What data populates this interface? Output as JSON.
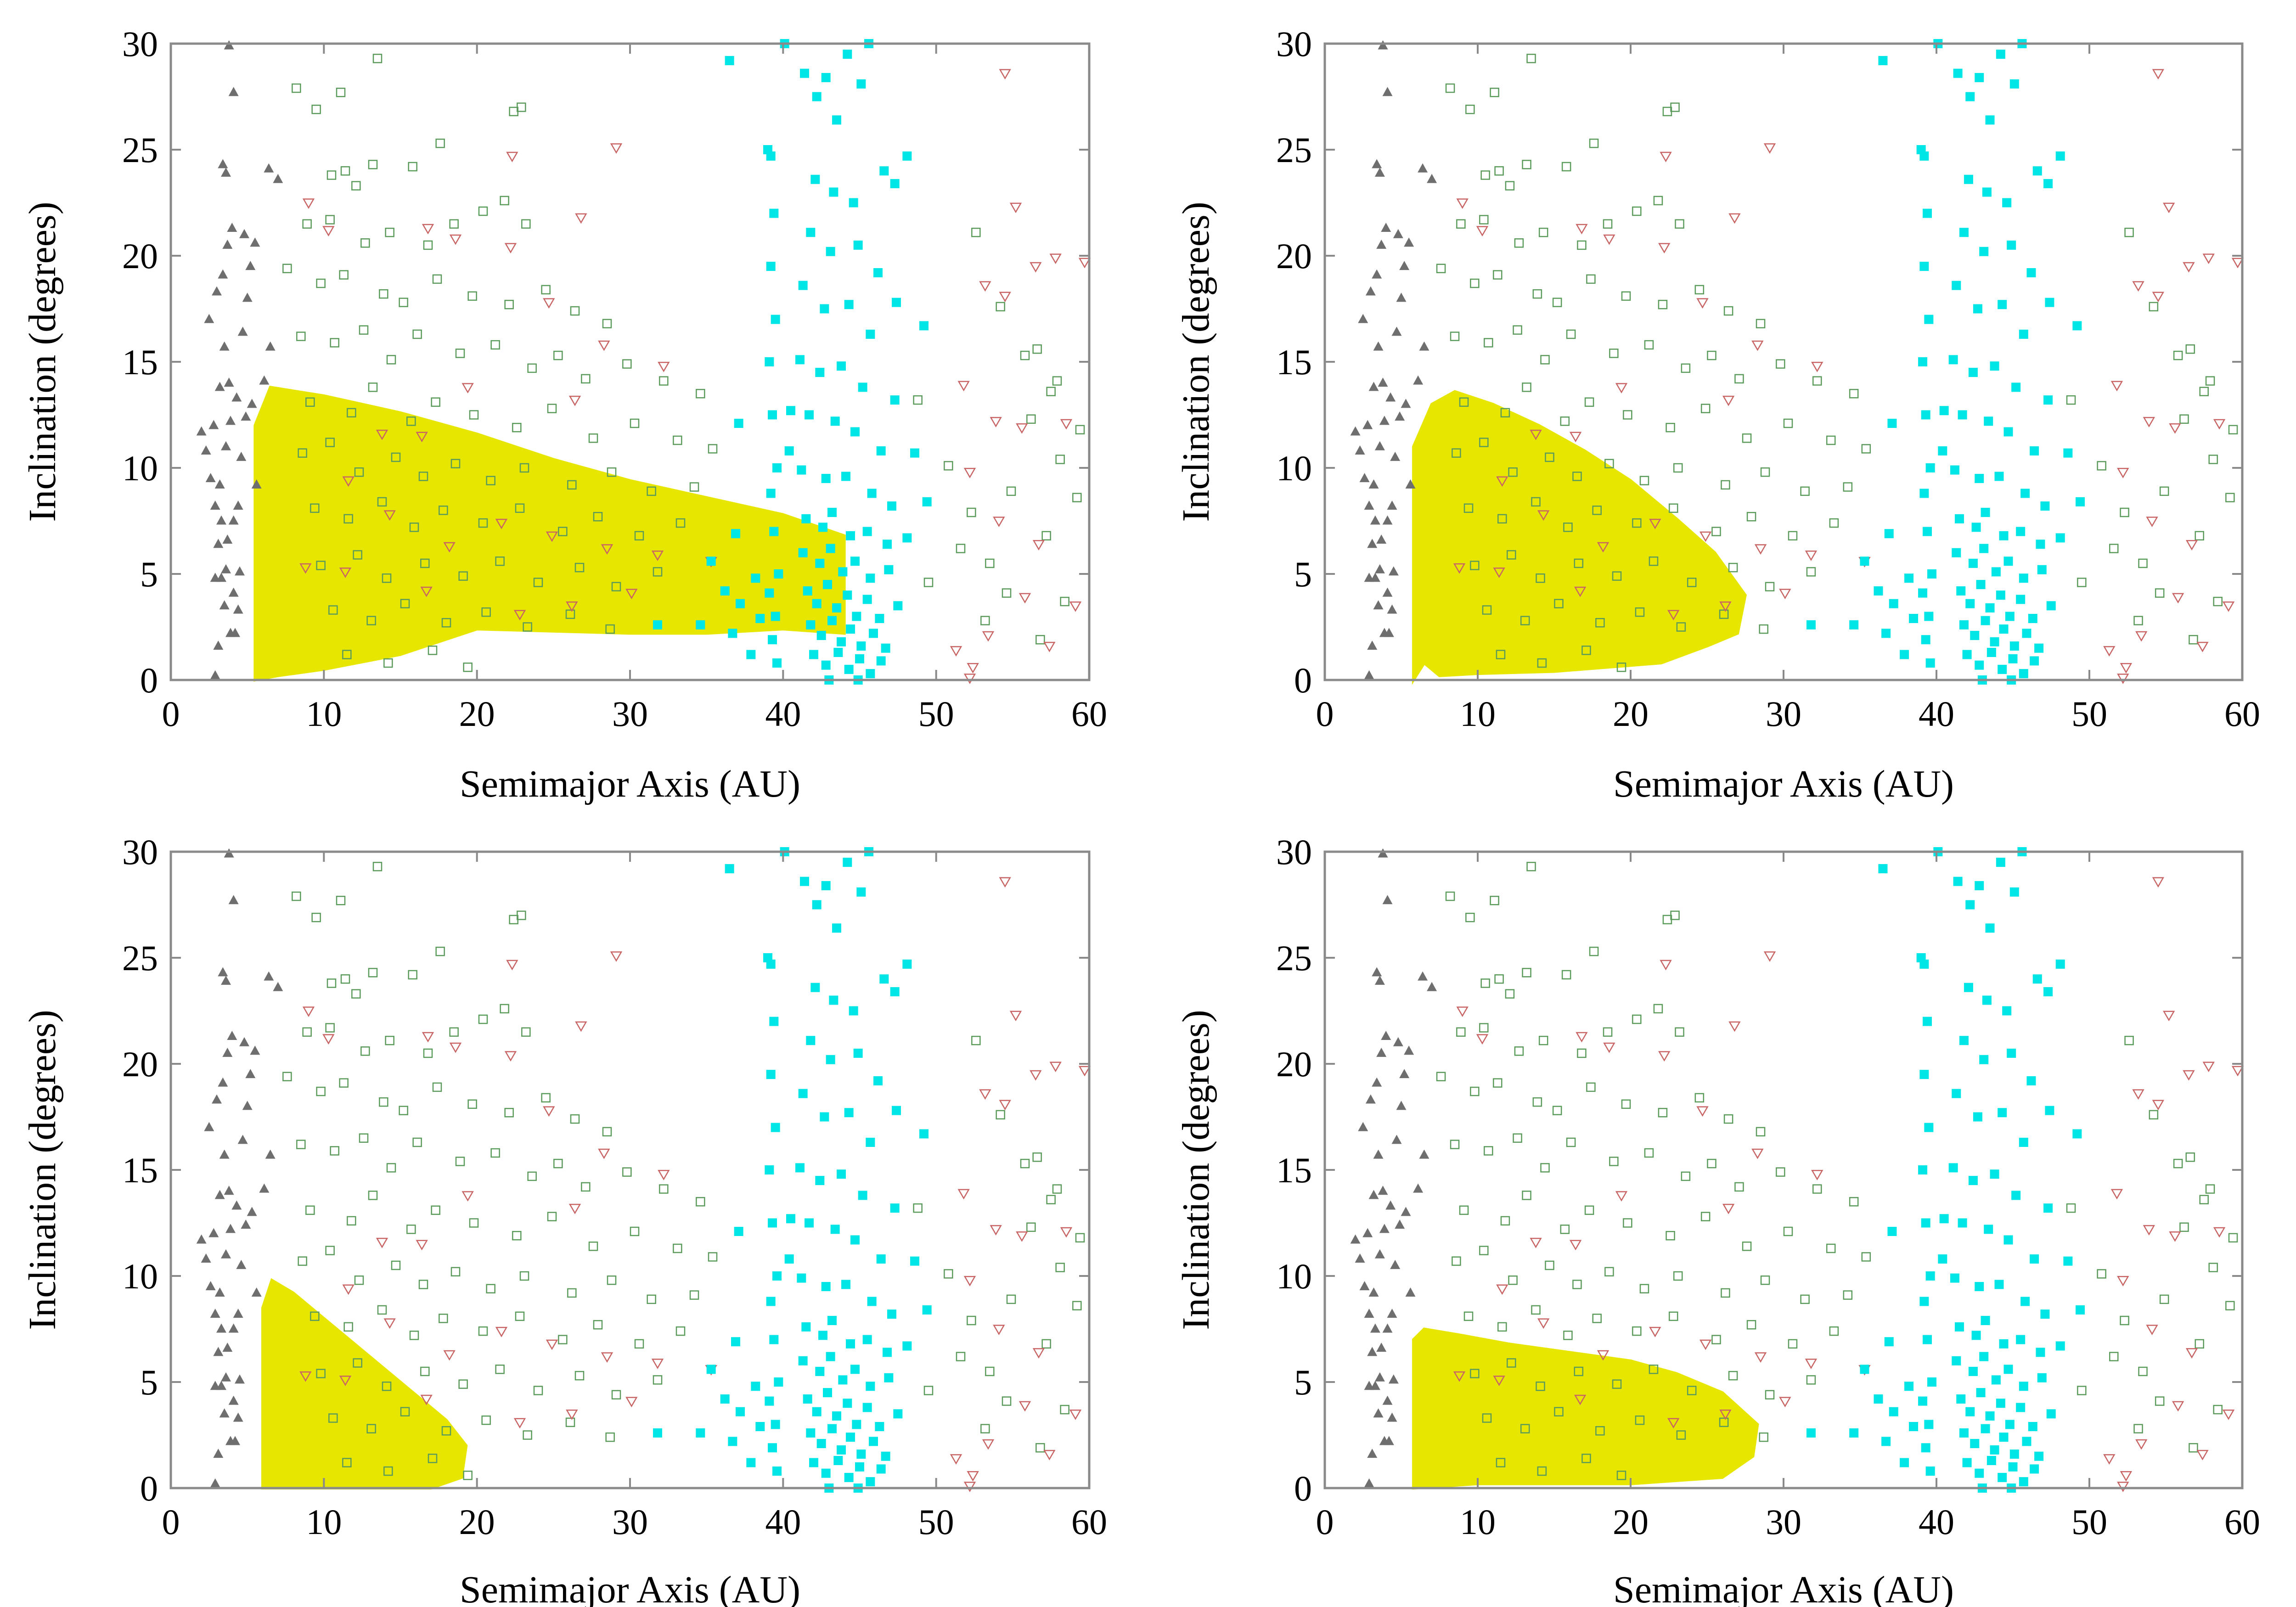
{
  "figure": {
    "colors": {
      "asteroid_triangle": "#6e6e6e",
      "open_square": "#5a9a5a",
      "down_triangle": "#c86464",
      "kuiper_square": "#00e5e5",
      "fill_region": "#e6e600"
    }
  },
  "chart_data": [
    {
      "type": "scatter",
      "panel": "top-left",
      "xlabel": "Semimajor Axis (AU)",
      "ylabel": "Inclination (degrees)",
      "xlim": [
        0,
        60
      ],
      "ylim": [
        0,
        30
      ],
      "xticks": [
        "0",
        "10",
        "20",
        "30",
        "40",
        "50",
        "60"
      ],
      "yticks": [
        "0",
        "5",
        "10",
        "15",
        "20",
        "25",
        "30"
      ],
      "region": [
        [
          5.5,
          0
        ],
        [
          5.5,
          12
        ],
        [
          6.5,
          13.8
        ],
        [
          10,
          13.4
        ],
        [
          15,
          12.6
        ],
        [
          20,
          11.6
        ],
        [
          25,
          10.4
        ],
        [
          30,
          9.4
        ],
        [
          35,
          8.6
        ],
        [
          40,
          7.8
        ],
        [
          44,
          6.8
        ],
        [
          44,
          2.2
        ],
        [
          40,
          2.4
        ],
        [
          35,
          2.2
        ],
        [
          30,
          2.2
        ],
        [
          25,
          2.3
        ],
        [
          20,
          2.4
        ],
        [
          15,
          1.2
        ],
        [
          10,
          0.5
        ],
        [
          7,
          0.2
        ]
      ]
    },
    {
      "type": "scatter",
      "panel": "top-right",
      "xlabel": "Semimajor Axis (AU)",
      "ylabel": "Inclination (degrees)",
      "xlim": [
        0,
        60
      ],
      "ylim": [
        0,
        30
      ],
      "xticks": [
        "0",
        "10",
        "20",
        "30",
        "40",
        "50",
        "60"
      ],
      "yticks": [
        "0",
        "5",
        "10",
        "15",
        "20",
        "25",
        "30"
      ],
      "region": [
        [
          5.8,
          0
        ],
        [
          5.8,
          11
        ],
        [
          7,
          13
        ],
        [
          8.5,
          13.6
        ],
        [
          11,
          13
        ],
        [
          14,
          12
        ],
        [
          17,
          10.8
        ],
        [
          20,
          9.4
        ],
        [
          23,
          7.6
        ],
        [
          25.5,
          6
        ],
        [
          27.5,
          4
        ],
        [
          27,
          2.2
        ],
        [
          25,
          1.6
        ],
        [
          22,
          0.8
        ],
        [
          15,
          0.4
        ],
        [
          10,
          0.3
        ],
        [
          7.5,
          0.2
        ],
        [
          6.5,
          0.8
        ]
      ]
    },
    {
      "type": "scatter",
      "panel": "bottom-left",
      "xlabel": "Semimajor Axis (AU)",
      "ylabel": "Inclination (degrees)",
      "xlim": [
        0,
        60
      ],
      "ylim": [
        0,
        30
      ],
      "xticks": [
        "0",
        "10",
        "20",
        "30",
        "40",
        "50",
        "60"
      ],
      "yticks": [
        "0",
        "5",
        "10",
        "15",
        "20",
        "25",
        "30"
      ],
      "region": [
        [
          6,
          0
        ],
        [
          6,
          8.5
        ],
        [
          6.6,
          9.8
        ],
        [
          8,
          9.2
        ],
        [
          10,
          8
        ],
        [
          12,
          6.8
        ],
        [
          14,
          5.6
        ],
        [
          16,
          4.4
        ],
        [
          18,
          3.2
        ],
        [
          19.3,
          2
        ],
        [
          19,
          0.5
        ],
        [
          17,
          0
        ],
        [
          10,
          0
        ]
      ]
    },
    {
      "type": "scatter",
      "panel": "bottom-right",
      "xlabel": "Semimajor Axis (AU)",
      "ylabel": "Inclination (degrees)",
      "xlim": [
        0,
        60
      ],
      "ylim": [
        0,
        30
      ],
      "xticks": [
        "0",
        "10",
        "20",
        "30",
        "40",
        "50",
        "60"
      ],
      "yticks": [
        "0",
        "5",
        "10",
        "15",
        "20",
        "25",
        "30"
      ],
      "region": [
        [
          5.8,
          0
        ],
        [
          5.8,
          7
        ],
        [
          6.5,
          7.5
        ],
        [
          9,
          7.2
        ],
        [
          12,
          6.8
        ],
        [
          16,
          6.4
        ],
        [
          20,
          6
        ],
        [
          23,
          5.4
        ],
        [
          26,
          4.5
        ],
        [
          28.3,
          3
        ],
        [
          28,
          1.5
        ],
        [
          26,
          0.5
        ],
        [
          20,
          0.2
        ],
        [
          10,
          0.2
        ]
      ]
    }
  ],
  "shared_points": {
    "asteroid_triangles": [
      [
        2,
        11.7
      ],
      [
        2.3,
        10.8
      ],
      [
        2.6,
        9.5
      ],
      [
        2.9,
        8.2
      ],
      [
        3.1,
        6.4
      ],
      [
        3.3,
        4.8
      ],
      [
        3.5,
        3.5
      ],
      [
        2.8,
        12
      ],
      [
        3.6,
        11
      ],
      [
        3.2,
        13.8
      ],
      [
        3.8,
        14
      ],
      [
        2.5,
        17
      ],
      [
        3,
        18.3
      ],
      [
        3.4,
        19.1
      ],
      [
        3.7,
        20.5
      ],
      [
        4,
        21.3
      ],
      [
        3.6,
        23.9
      ],
      [
        3.4,
        24.3
      ],
      [
        4.1,
        27.7
      ],
      [
        3.8,
        29.9
      ],
      [
        2.9,
        0.2
      ],
      [
        3.1,
        1.6
      ],
      [
        3.9,
        2.2
      ],
      [
        4.2,
        2.2
      ],
      [
        4.5,
        5.1
      ],
      [
        3.7,
        6.6
      ],
      [
        4.1,
        7.5
      ],
      [
        4.4,
        8.2
      ],
      [
        3.2,
        9.2
      ],
      [
        4.6,
        10.5
      ],
      [
        3.9,
        12.2
      ],
      [
        4.3,
        13.3
      ],
      [
        3.5,
        15.7
      ],
      [
        4.7,
        16.4
      ],
      [
        5,
        18
      ],
      [
        5.2,
        19.5
      ],
      [
        4.8,
        21
      ],
      [
        6.4,
        24.1
      ],
      [
        7,
        23.6
      ],
      [
        5.5,
        20.6
      ],
      [
        4.9,
        12.4
      ],
      [
        5.3,
        13
      ],
      [
        5.6,
        9.2
      ],
      [
        6.1,
        14.1
      ],
      [
        6.5,
        15.7
      ],
      [
        4.1,
        4.1
      ],
      [
        4.4,
        3.3
      ],
      [
        3.6,
        5.2
      ],
      [
        2.9,
        4.8
      ],
      [
        3.3,
        7.5
      ]
    ],
    "kuiper_squares": [
      [
        39,
        25
      ],
      [
        39.2,
        24.7
      ],
      [
        39.4,
        22
      ],
      [
        39.2,
        19.5
      ],
      [
        39.5,
        17
      ],
      [
        39.1,
        15
      ],
      [
        39.3,
        12.5
      ],
      [
        39.6,
        10
      ],
      [
        39.2,
        8.8
      ],
      [
        39.4,
        7
      ],
      [
        39.7,
        5
      ],
      [
        39.1,
        4.1
      ],
      [
        39.5,
        3
      ],
      [
        39.3,
        1.9
      ],
      [
        39.6,
        0.8
      ],
      [
        40.1,
        30
      ],
      [
        41.4,
        28.6
      ],
      [
        42.2,
        27.5
      ],
      [
        42.8,
        28.4
      ],
      [
        43.5,
        26.4
      ],
      [
        44.2,
        29.5
      ],
      [
        45.1,
        28.1
      ],
      [
        45.6,
        30
      ],
      [
        42.1,
        23.6
      ],
      [
        43.3,
        23
      ],
      [
        44.6,
        22.5
      ],
      [
        46.6,
        24
      ],
      [
        47.3,
        23.4
      ],
      [
        48.1,
        24.7
      ],
      [
        41.8,
        21.1
      ],
      [
        43.1,
        20.2
      ],
      [
        44.9,
        20.5
      ],
      [
        46.2,
        19.2
      ],
      [
        47.4,
        17.8
      ],
      [
        41.3,
        18.6
      ],
      [
        42.7,
        17.5
      ],
      [
        44.3,
        17.7
      ],
      [
        45.7,
        16.3
      ],
      [
        49.2,
        16.7
      ],
      [
        41.1,
        15.1
      ],
      [
        42.4,
        14.5
      ],
      [
        43.8,
        14.8
      ],
      [
        45.2,
        13.8
      ],
      [
        47.3,
        13.2
      ],
      [
        41.7,
        12.5
      ],
      [
        43.4,
        12.2
      ],
      [
        44.7,
        11.7
      ],
      [
        46.4,
        10.8
      ],
      [
        48.6,
        10.7
      ],
      [
        41.2,
        9.9
      ],
      [
        42.8,
        9.5
      ],
      [
        44.1,
        9.6
      ],
      [
        45.8,
        8.8
      ],
      [
        47.1,
        8.2
      ],
      [
        41.5,
        7.6
      ],
      [
        42.6,
        7.2
      ],
      [
        43.2,
        7.9
      ],
      [
        44.4,
        6.8
      ],
      [
        45.5,
        7
      ],
      [
        46.8,
        6.4
      ],
      [
        41.3,
        6
      ],
      [
        42.4,
        5.5
      ],
      [
        43.1,
        6.2
      ],
      [
        43.9,
        5.1
      ],
      [
        44.7,
        5.6
      ],
      [
        45.7,
        4.8
      ],
      [
        46.9,
        5.2
      ],
      [
        41.6,
        4.2
      ],
      [
        42.2,
        3.6
      ],
      [
        42.9,
        4.5
      ],
      [
        43.5,
        3.4
      ],
      [
        44.2,
        4
      ],
      [
        44.8,
        3
      ],
      [
        45.5,
        3.8
      ],
      [
        46.3,
        2.9
      ],
      [
        47.5,
        3.5
      ],
      [
        41.8,
        2.6
      ],
      [
        42.5,
        2.1
      ],
      [
        43.2,
        2.8
      ],
      [
        43.8,
        1.8
      ],
      [
        44.4,
        2.4
      ],
      [
        45.1,
        1.6
      ],
      [
        45.9,
        2.2
      ],
      [
        46.7,
        1.5
      ],
      [
        42,
        1.2
      ],
      [
        42.8,
        0.7
      ],
      [
        43.6,
        1.3
      ],
      [
        44.3,
        0.5
      ],
      [
        45,
        1
      ],
      [
        45.7,
        0.3
      ],
      [
        46.4,
        0.9
      ],
      [
        43,
        0
      ],
      [
        44.9,
        0
      ],
      [
        36.7,
        2.2
      ],
      [
        37.2,
        3.6
      ],
      [
        37.9,
        1.2
      ],
      [
        38.2,
        4.8
      ],
      [
        38.5,
        2.9
      ],
      [
        36.2,
        4.2
      ],
      [
        34.6,
        2.6
      ],
      [
        35.3,
        5.6
      ],
      [
        36.9,
        6.9
      ],
      [
        31.8,
        2.6
      ],
      [
        40.5,
        12.7
      ],
      [
        40.4,
        10.8
      ],
      [
        48.1,
        6.7
      ],
      [
        49.4,
        8.4
      ],
      [
        37.1,
        12.1
      ],
      [
        36.5,
        29.2
      ]
    ],
    "open_squares": [
      [
        8.2,
        27.9
      ],
      [
        9.5,
        26.9
      ],
      [
        11.1,
        27.7
      ],
      [
        13.5,
        29.3
      ],
      [
        22.4,
        26.8
      ],
      [
        22.9,
        27
      ],
      [
        10.5,
        23.8
      ],
      [
        11.4,
        24
      ],
      [
        12.1,
        23.3
      ],
      [
        13.2,
        24.3
      ],
      [
        15.8,
        24.2
      ],
      [
        17.6,
        25.3
      ],
      [
        8.9,
        21.5
      ],
      [
        10.4,
        21.7
      ],
      [
        12.7,
        20.6
      ],
      [
        14.3,
        21.1
      ],
      [
        16.8,
        20.5
      ],
      [
        18.5,
        21.5
      ],
      [
        20.4,
        22.1
      ],
      [
        21.8,
        22.6
      ],
      [
        23.2,
        21.5
      ],
      [
        7.6,
        19.4
      ],
      [
        9.8,
        18.7
      ],
      [
        11.3,
        19.1
      ],
      [
        13.9,
        18.2
      ],
      [
        15.2,
        17.8
      ],
      [
        17.4,
        18.9
      ],
      [
        19.7,
        18.1
      ],
      [
        22.1,
        17.7
      ],
      [
        24.5,
        18.4
      ],
      [
        26.4,
        17.4
      ],
      [
        28.5,
        16.8
      ],
      [
        8.5,
        16.2
      ],
      [
        10.7,
        15.9
      ],
      [
        12.6,
        16.5
      ],
      [
        14.4,
        15.1
      ],
      [
        16.1,
        16.3
      ],
      [
        18.9,
        15.4
      ],
      [
        21.2,
        15.8
      ],
      [
        23.6,
        14.7
      ],
      [
        25.3,
        15.3
      ],
      [
        27.1,
        14.2
      ],
      [
        29.8,
        14.9
      ],
      [
        32.2,
        14.1
      ],
      [
        34.6,
        13.5
      ],
      [
        9.1,
        13.1
      ],
      [
        11.8,
        12.6
      ],
      [
        13.2,
        13.8
      ],
      [
        15.7,
        12.2
      ],
      [
        17.3,
        13.1
      ],
      [
        19.8,
        12.5
      ],
      [
        22.6,
        11.9
      ],
      [
        24.9,
        12.8
      ],
      [
        27.6,
        11.4
      ],
      [
        30.3,
        12.1
      ],
      [
        33.1,
        11.3
      ],
      [
        35.4,
        10.9
      ],
      [
        8.6,
        10.7
      ],
      [
        10.4,
        11.2
      ],
      [
        12.3,
        9.8
      ],
      [
        14.7,
        10.5
      ],
      [
        16.5,
        9.6
      ],
      [
        18.6,
        10.2
      ],
      [
        20.9,
        9.4
      ],
      [
        23.1,
        10
      ],
      [
        26.2,
        9.2
      ],
      [
        28.8,
        9.8
      ],
      [
        31.4,
        8.9
      ],
      [
        34.2,
        9.1
      ],
      [
        9.4,
        8.1
      ],
      [
        11.6,
        7.6
      ],
      [
        13.8,
        8.4
      ],
      [
        15.9,
        7.2
      ],
      [
        17.8,
        8
      ],
      [
        20.4,
        7.4
      ],
      [
        22.8,
        8.1
      ],
      [
        25.6,
        7
      ],
      [
        27.9,
        7.7
      ],
      [
        30.6,
        6.8
      ],
      [
        33.3,
        7.4
      ],
      [
        9.8,
        5.4
      ],
      [
        12.2,
        5.9
      ],
      [
        14.1,
        4.8
      ],
      [
        16.6,
        5.5
      ],
      [
        19.1,
        4.9
      ],
      [
        21.5,
        5.6
      ],
      [
        24,
        4.6
      ],
      [
        26.7,
        5.3
      ],
      [
        29.1,
        4.4
      ],
      [
        31.8,
        5.1
      ],
      [
        10.6,
        3.3
      ],
      [
        13.1,
        2.8
      ],
      [
        15.3,
        3.6
      ],
      [
        18,
        2.7
      ],
      [
        20.6,
        3.2
      ],
      [
        23.3,
        2.5
      ],
      [
        26.1,
        3.1
      ],
      [
        28.7,
        2.4
      ],
      [
        11.5,
        1.2
      ],
      [
        14.2,
        0.8
      ],
      [
        17.1,
        1.4
      ],
      [
        19.4,
        0.6
      ],
      [
        48.8,
        13.2
      ],
      [
        50.8,
        10.1
      ],
      [
        52.3,
        7.9
      ],
      [
        53.5,
        5.5
      ],
      [
        54.9,
        8.9
      ],
      [
        56.2,
        12.3
      ],
      [
        57.5,
        13.6
      ],
      [
        58.1,
        10.4
      ],
      [
        59.4,
        11.8
      ],
      [
        55.8,
        15.3
      ],
      [
        57.9,
        14.1
      ],
      [
        59.2,
        8.6
      ],
      [
        49.5,
        4.6
      ],
      [
        51.6,
        6.2
      ],
      [
        53.2,
        2.8
      ],
      [
        54.6,
        4.1
      ],
      [
        56.8,
        1.9
      ],
      [
        58.4,
        3.7
      ],
      [
        52.6,
        21.1
      ],
      [
        54.2,
        17.6
      ],
      [
        56.6,
        15.6
      ],
      [
        57.2,
        6.8
      ]
    ],
    "down_triangles": [
      [
        9,
        22.5
      ],
      [
        10.3,
        21.2
      ],
      [
        16.8,
        21.3
      ],
      [
        18.6,
        20.8
      ],
      [
        22.3,
        24.7
      ],
      [
        29.1,
        25.1
      ],
      [
        26.8,
        21.8
      ],
      [
        22.2,
        20.4
      ],
      [
        24.7,
        17.8
      ],
      [
        28.3,
        15.8
      ],
      [
        32.2,
        14.8
      ],
      [
        26.4,
        13.2
      ],
      [
        19.4,
        13.8
      ],
      [
        16.4,
        11.5
      ],
      [
        13.8,
        11.6
      ],
      [
        11.6,
        9.4
      ],
      [
        14.3,
        7.8
      ],
      [
        18.2,
        6.3
      ],
      [
        21.6,
        7.4
      ],
      [
        24.9,
        6.8
      ],
      [
        28.5,
        6.2
      ],
      [
        31.8,
        5.9
      ],
      [
        35.3,
        5.6
      ],
      [
        30.1,
        4.1
      ],
      [
        26.2,
        3.5
      ],
      [
        22.8,
        3.1
      ],
      [
        16.7,
        4.2
      ],
      [
        11.4,
        5.1
      ],
      [
        8.8,
        5.3
      ],
      [
        53.2,
        18.6
      ],
      [
        54.5,
        18.1
      ],
      [
        56.5,
        19.5
      ],
      [
        57.8,
        19.9
      ],
      [
        59.7,
        19.7
      ],
      [
        55.2,
        22.3
      ],
      [
        51.8,
        13.9
      ],
      [
        53.9,
        12.2
      ],
      [
        55.6,
        11.9
      ],
      [
        58.5,
        12.1
      ],
      [
        52.2,
        9.8
      ],
      [
        54.1,
        7.5
      ],
      [
        56.7,
        6.4
      ],
      [
        59.1,
        3.5
      ],
      [
        51.3,
        1.4
      ],
      [
        52.4,
        0.6
      ],
      [
        52.2,
        0.1
      ],
      [
        53.4,
        2.1
      ],
      [
        55.8,
        3.9
      ],
      [
        57.4,
        1.6
      ],
      [
        54.5,
        28.6
      ]
    ]
  }
}
